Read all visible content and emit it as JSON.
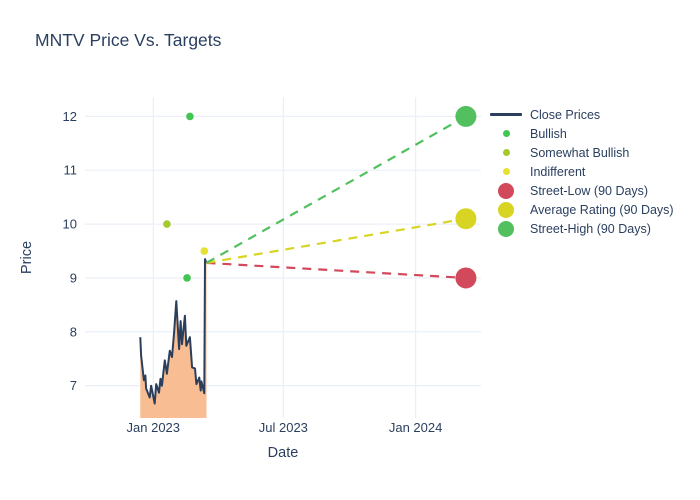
{
  "chart_data": {
    "type": "line+scatter",
    "title": "MNTV Price Vs. Targets",
    "xlabel": "Date",
    "ylabel": "Price",
    "colors": {
      "text": "#2a3f5f",
      "grid": "#ebf0f8",
      "close_line": "#2b3f5c",
      "close_fill": "#f8bd92",
      "bullish": "#42c553",
      "somewhat_bullish": "#a6c92e",
      "indifferent": "#e5e032",
      "street_low": "#d1495a",
      "average_rating": "#d8d424",
      "street_high": "#52c05e"
    },
    "x_axis": {
      "range": [
        "2022-09-28",
        "2024-04-01"
      ],
      "ticks": [
        {
          "date": "2023-01-01",
          "label": "Jan 2023"
        },
        {
          "date": "2023-07-01",
          "label": "Jul 2023"
        },
        {
          "date": "2024-01-01",
          "label": "Jan 2024"
        }
      ]
    },
    "y_axis": {
      "range": [
        6.4,
        12.36
      ],
      "ticks": [
        7,
        8,
        9,
        10,
        11,
        12
      ]
    },
    "close_prices": {
      "name": "Close Prices",
      "points": [
        [
          "2022-12-14",
          7.9
        ],
        [
          "2022-12-15",
          7.56
        ],
        [
          "2022-12-19",
          7.1
        ],
        [
          "2022-12-21",
          7.19
        ],
        [
          "2022-12-22",
          6.95
        ],
        [
          "2022-12-27",
          6.78
        ],
        [
          "2022-12-29",
          7.0
        ],
        [
          "2023-01-03",
          6.67
        ],
        [
          "2023-01-05",
          7.03
        ],
        [
          "2023-01-09",
          6.87
        ],
        [
          "2023-01-11",
          7.13
        ],
        [
          "2023-01-13",
          7.0
        ],
        [
          "2023-01-17",
          7.47
        ],
        [
          "2023-01-20",
          7.22
        ],
        [
          "2023-01-24",
          7.65
        ],
        [
          "2023-01-27",
          7.53
        ],
        [
          "2023-01-30",
          7.99
        ],
        [
          "2023-02-02",
          8.57
        ],
        [
          "2023-02-06",
          7.68
        ],
        [
          "2023-02-08",
          8.2
        ],
        [
          "2023-02-10",
          7.77
        ],
        [
          "2023-02-14",
          8.3
        ],
        [
          "2023-02-16",
          7.74
        ],
        [
          "2023-02-21",
          7.9
        ],
        [
          "2023-02-24",
          7.34
        ],
        [
          "2023-02-28",
          7.32
        ],
        [
          "2023-03-02",
          7.03
        ],
        [
          "2023-03-06",
          7.15
        ],
        [
          "2023-03-08",
          6.91
        ],
        [
          "2023-03-09",
          7.08
        ],
        [
          "2023-03-13",
          6.86
        ],
        [
          "2023-03-14",
          9.35
        ],
        [
          "2023-03-16",
          9.28
        ]
      ]
    },
    "last_close": {
      "date": "2023-03-16",
      "value": 9.28
    },
    "ratings": [
      {
        "name": "Bullish",
        "color_key": "bullish",
        "points": [
          [
            "2023-02-17",
            9.0
          ],
          [
            "2023-02-21",
            12.0
          ]
        ]
      },
      {
        "name": "Somewhat Bullish",
        "color_key": "somewhat_bullish",
        "points": [
          [
            "2023-01-20",
            10.0
          ]
        ]
      },
      {
        "name": "Indifferent",
        "color_key": "indifferent",
        "points": [
          [
            "2023-03-13",
            9.5
          ]
        ]
      }
    ],
    "targets": [
      {
        "name": "Street-Low (90 Days)",
        "color_key": "street_low",
        "date": "2024-03-11",
        "value": 9.0
      },
      {
        "name": "Average Rating (90 Days)",
        "color_key": "average_rating",
        "date": "2024-03-11",
        "value": 10.1
      },
      {
        "name": "Street-High (90 Days)",
        "color_key": "street_high",
        "date": "2024-03-11",
        "value": 12.0
      }
    ],
    "legend": {
      "items": [
        {
          "label": "Close Prices",
          "symbol": "line",
          "color_key": "close_line"
        },
        {
          "label": "Bullish",
          "symbol": "dot",
          "color_key": "bullish"
        },
        {
          "label": "Somewhat Bullish",
          "symbol": "dot",
          "color_key": "somewhat_bullish"
        },
        {
          "label": "Indifferent",
          "symbol": "dot",
          "color_key": "indifferent"
        },
        {
          "label": "Street-Low (90 Days)",
          "symbol": "big-dot",
          "color_key": "street_low"
        },
        {
          "label": "Average Rating (90 Days)",
          "symbol": "big-dot",
          "color_key": "average_rating"
        },
        {
          "label": "Street-High (90 Days)",
          "symbol": "big-dot",
          "color_key": "street_high"
        }
      ]
    }
  }
}
